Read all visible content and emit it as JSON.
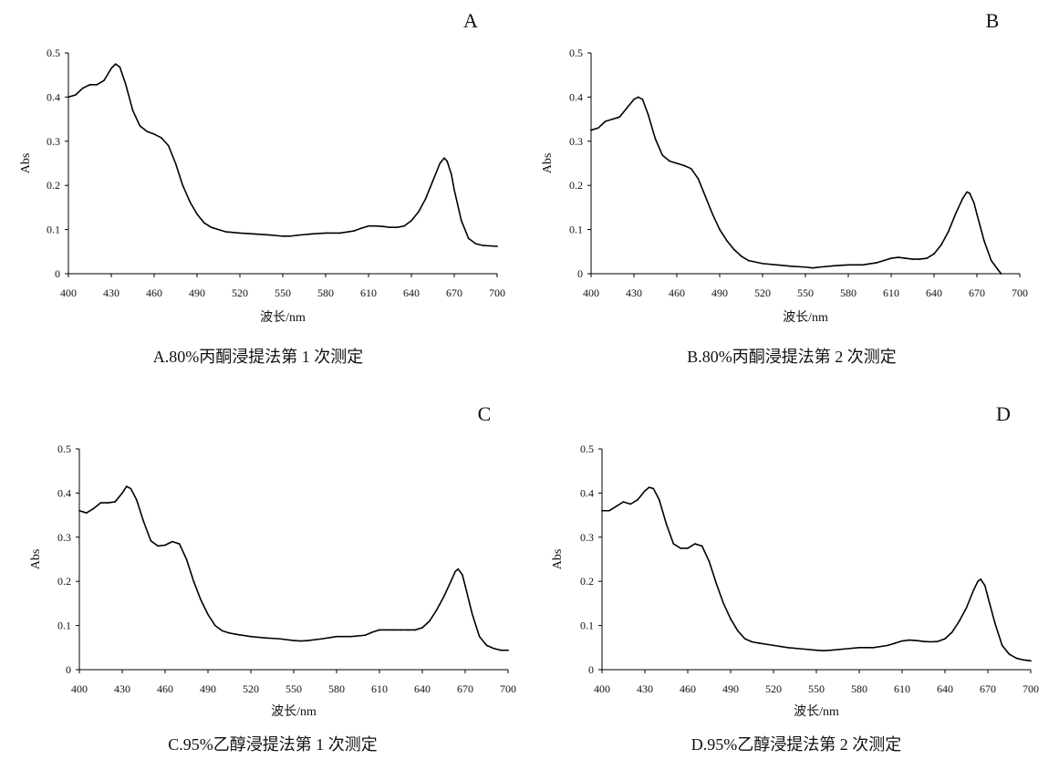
{
  "chart_data": [
    {
      "type": "line",
      "panel_label": "A",
      "caption": "A.80%丙酮浸提法第 1 次测定",
      "xlabel": "波长/nm",
      "ylabel": "Abs",
      "xlim": [
        400,
        700
      ],
      "ylim": [
        0,
        0.5
      ],
      "x_ticks": [
        400,
        430,
        460,
        490,
        520,
        550,
        580,
        610,
        640,
        670,
        700
      ],
      "y_ticks": [
        0,
        0.1,
        0.2,
        0.3,
        0.4,
        0.5
      ],
      "grid": false,
      "series": [
        {
          "x": [
            400,
            405,
            410,
            415,
            420,
            425,
            430,
            433,
            436,
            440,
            445,
            450,
            455,
            460,
            465,
            470,
            475,
            480,
            485,
            490,
            495,
            500,
            505,
            510,
            520,
            530,
            540,
            550,
            555,
            560,
            570,
            580,
            590,
            600,
            605,
            610,
            615,
            620,
            625,
            630,
            635,
            640,
            645,
            650,
            655,
            660,
            663,
            665,
            668,
            670,
            675,
            680,
            685,
            690,
            695,
            700
          ],
          "y": [
            0.4,
            0.405,
            0.42,
            0.428,
            0.428,
            0.438,
            0.465,
            0.475,
            0.468,
            0.43,
            0.37,
            0.335,
            0.322,
            0.316,
            0.308,
            0.29,
            0.25,
            0.2,
            0.163,
            0.135,
            0.115,
            0.105,
            0.1,
            0.095,
            0.092,
            0.09,
            0.088,
            0.085,
            0.085,
            0.087,
            0.09,
            0.092,
            0.092,
            0.097,
            0.103,
            0.108,
            0.108,
            0.107,
            0.105,
            0.105,
            0.108,
            0.12,
            0.14,
            0.17,
            0.21,
            0.25,
            0.262,
            0.255,
            0.225,
            0.19,
            0.12,
            0.08,
            0.068,
            0.064,
            0.063,
            0.062
          ]
        }
      ]
    },
    {
      "type": "line",
      "panel_label": "B",
      "caption": "B.80%丙酮浸提法第 2 次测定",
      "xlabel": "波长/nm",
      "ylabel": "Abs",
      "xlim": [
        400,
        700
      ],
      "ylim": [
        0,
        0.5
      ],
      "x_ticks": [
        400,
        430,
        460,
        490,
        520,
        550,
        580,
        610,
        640,
        670,
        700
      ],
      "y_ticks": [
        0,
        0.1,
        0.2,
        0.3,
        0.4,
        0.5
      ],
      "grid": false,
      "series": [
        {
          "x": [
            400,
            405,
            410,
            415,
            420,
            425,
            430,
            433,
            436,
            440,
            445,
            450,
            455,
            460,
            465,
            470,
            475,
            480,
            485,
            490,
            495,
            500,
            505,
            510,
            520,
            530,
            540,
            550,
            555,
            560,
            570,
            580,
            590,
            600,
            605,
            610,
            615,
            620,
            625,
            630,
            635,
            640,
            645,
            650,
            655,
            660,
            663,
            665,
            668,
            670,
            675,
            680,
            685,
            687
          ],
          "y": [
            0.325,
            0.33,
            0.345,
            0.35,
            0.355,
            0.375,
            0.395,
            0.4,
            0.395,
            0.36,
            0.305,
            0.268,
            0.255,
            0.25,
            0.245,
            0.238,
            0.215,
            0.175,
            0.135,
            0.1,
            0.075,
            0.055,
            0.04,
            0.03,
            0.023,
            0.02,
            0.017,
            0.015,
            0.013,
            0.015,
            0.018,
            0.02,
            0.02,
            0.025,
            0.03,
            0.035,
            0.037,
            0.035,
            0.033,
            0.033,
            0.035,
            0.045,
            0.065,
            0.095,
            0.135,
            0.17,
            0.185,
            0.182,
            0.16,
            0.135,
            0.075,
            0.03,
            0.008,
            0.0
          ]
        }
      ]
    },
    {
      "type": "line",
      "panel_label": "C",
      "caption": "C.95%乙醇浸提法第 1 次测定",
      "xlabel": "波长/nm",
      "ylabel": "Abs",
      "xlim": [
        400,
        700
      ],
      "ylim": [
        0,
        0.5
      ],
      "x_ticks": [
        400,
        430,
        460,
        490,
        520,
        550,
        580,
        610,
        640,
        670,
        700
      ],
      "y_ticks": [
        0,
        0.1,
        0.2,
        0.3,
        0.4,
        0.5
      ],
      "grid": false,
      "series": [
        {
          "x": [
            400,
            405,
            410,
            415,
            420,
            425,
            430,
            433,
            436,
            440,
            445,
            450,
            455,
            460,
            465,
            470,
            475,
            480,
            485,
            490,
            495,
            500,
            505,
            510,
            520,
            530,
            540,
            550,
            555,
            560,
            570,
            580,
            590,
            600,
            605,
            610,
            615,
            620,
            625,
            630,
            635,
            640,
            645,
            650,
            655,
            660,
            663,
            665,
            668,
            670,
            675,
            680,
            685,
            690,
            695,
            700
          ],
          "y": [
            0.36,
            0.355,
            0.365,
            0.378,
            0.378,
            0.38,
            0.4,
            0.415,
            0.41,
            0.385,
            0.335,
            0.292,
            0.28,
            0.282,
            0.29,
            0.285,
            0.25,
            0.2,
            0.158,
            0.125,
            0.1,
            0.088,
            0.083,
            0.08,
            0.075,
            0.072,
            0.07,
            0.066,
            0.065,
            0.066,
            0.07,
            0.075,
            0.075,
            0.078,
            0.085,
            0.09,
            0.09,
            0.09,
            0.09,
            0.09,
            0.09,
            0.095,
            0.11,
            0.135,
            0.165,
            0.2,
            0.222,
            0.228,
            0.215,
            0.19,
            0.125,
            0.075,
            0.055,
            0.048,
            0.044,
            0.044
          ]
        }
      ]
    },
    {
      "type": "line",
      "panel_label": "D",
      "caption": "D.95%乙醇浸提法第 2 次测定",
      "xlabel": "波长/nm",
      "ylabel": "Abs",
      "xlim": [
        400,
        700
      ],
      "ylim": [
        0,
        0.5
      ],
      "x_ticks": [
        400,
        430,
        460,
        490,
        520,
        550,
        580,
        610,
        640,
        670,
        700
      ],
      "y_ticks": [
        0,
        0.1,
        0.2,
        0.3,
        0.4,
        0.5
      ],
      "grid": false,
      "series": [
        {
          "x": [
            400,
            405,
            410,
            415,
            420,
            425,
            430,
            433,
            436,
            440,
            445,
            450,
            455,
            460,
            465,
            470,
            475,
            480,
            485,
            490,
            495,
            500,
            505,
            510,
            520,
            530,
            540,
            550,
            555,
            560,
            570,
            580,
            590,
            600,
            605,
            610,
            615,
            620,
            625,
            630,
            635,
            640,
            645,
            650,
            655,
            660,
            663,
            665,
            668,
            670,
            675,
            680,
            685,
            690,
            695,
            700
          ],
          "y": [
            0.36,
            0.36,
            0.37,
            0.38,
            0.375,
            0.385,
            0.405,
            0.413,
            0.41,
            0.385,
            0.33,
            0.285,
            0.275,
            0.275,
            0.285,
            0.28,
            0.245,
            0.195,
            0.15,
            0.115,
            0.088,
            0.07,
            0.063,
            0.06,
            0.055,
            0.05,
            0.047,
            0.044,
            0.043,
            0.044,
            0.047,
            0.05,
            0.05,
            0.055,
            0.06,
            0.065,
            0.067,
            0.066,
            0.064,
            0.063,
            0.064,
            0.07,
            0.085,
            0.11,
            0.14,
            0.18,
            0.2,
            0.205,
            0.19,
            0.165,
            0.105,
            0.055,
            0.035,
            0.026,
            0.022,
            0.02
          ]
        }
      ]
    }
  ]
}
